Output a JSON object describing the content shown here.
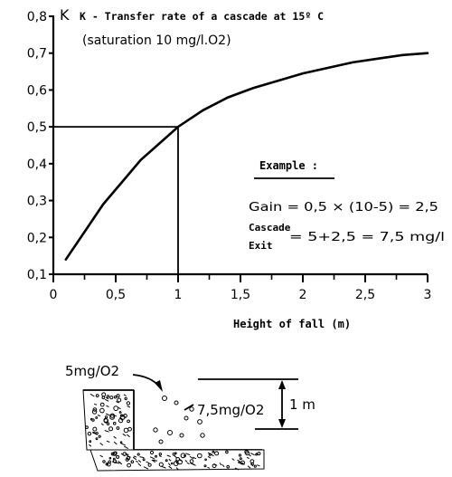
{
  "chart_data": {
    "type": "line",
    "title": "K - Transfer rate of a cascade at 15º C",
    "subtitle": "(saturation 10 mg/l.O2)",
    "xlabel": "Height of fall (m)",
    "ylabel": "",
    "xlim": [
      0,
      3
    ],
    "ylim": [
      0.1,
      0.8
    ],
    "x_ticks": [
      "0",
      "0,5",
      "1",
      "1,5",
      "2",
      "2,5",
      "3"
    ],
    "y_ticks": [
      "0,1",
      "0,2",
      "0,3",
      "0,4",
      "0,5",
      "0,6",
      "0,7",
      "0,8"
    ],
    "grid": false,
    "series": [
      {
        "x": [
          0.1,
          0.2,
          0.3,
          0.4,
          0.5,
          0.6,
          0.7,
          0.8,
          0.9,
          1.0,
          1.2,
          1.4,
          1.6,
          1.8,
          2.0,
          2.2,
          2.4,
          2.6,
          2.8,
          3.0
        ],
        "y": [
          0.14,
          0.19,
          0.24,
          0.29,
          0.33,
          0.37,
          0.41,
          0.44,
          0.47,
          0.5,
          0.545,
          0.58,
          0.605,
          0.625,
          0.645,
          0.66,
          0.675,
          0.685,
          0.695,
          0.7
        ]
      }
    ],
    "reference_point": {
      "x": 1,
      "y": 0.5
    },
    "example": {
      "heading": "Example :",
      "gain_line": "Gain = 0,5 × (10-5) = 2,5",
      "cascade_label": "Cascade",
      "exit_label": "Exit",
      "exit_value": "= 5+2,5 = 7,5 mg/l"
    }
  },
  "illustration": {
    "inflow_label": "5mg/O2",
    "outflow_label": "7,5mg/O2",
    "height_label": "1 m"
  }
}
